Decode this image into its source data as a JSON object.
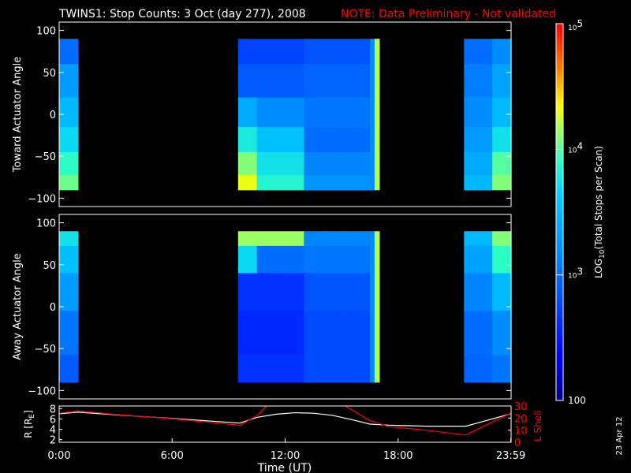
{
  "figure": {
    "title": "TWINS1: Stop Counts:  3 Oct (day 277), 2008",
    "note": "NOTE: Data Preliminary - Not validated",
    "date_stamp": "23 Apr 12",
    "xlabel": "Time (UT)",
    "colors": {
      "background": "#000000",
      "note": "#ff0000",
      "axis": "#ffffff",
      "r_line": "#ffffff",
      "l_line": "#ff0000"
    }
  },
  "chart_data": [
    {
      "type": "heatmap",
      "ylabel": "Toward Actuator Angle",
      "xlim": [
        0,
        24
      ],
      "ylim": [
        -110,
        110
      ],
      "yticks": [
        100,
        50,
        0,
        -50,
        -100
      ],
      "y_extent": [
        -90,
        90
      ],
      "scale": "log",
      "coverage": [
        [
          0.0,
          1.0
        ],
        [
          9.6,
          16.9
        ],
        [
          21.5,
          24.0
        ]
      ],
      "rows": [
        {
          "y": 80,
          "values": [
            [
              0.0,
              3.0
            ],
            [
              9.6,
              2.75
            ],
            [
              13.0,
              2.85
            ],
            [
              16.5,
              3.2
            ],
            [
              16.75,
              4.2
            ],
            [
              21.5,
              3.0
            ],
            [
              23.0,
              3.2
            ]
          ]
        },
        {
          "y": 40,
          "values": [
            [
              0.0,
              3.3
            ],
            [
              9.6,
              2.9
            ],
            [
              13.0,
              2.95
            ],
            [
              16.5,
              3.2
            ],
            [
              16.75,
              4.2
            ],
            [
              21.5,
              3.1
            ],
            [
              23.0,
              3.35
            ]
          ]
        },
        {
          "y": 0,
          "values": [
            [
              0.0,
              3.5
            ],
            [
              9.6,
              3.4
            ],
            [
              10.6,
              3.2
            ],
            [
              13.0,
              3.05
            ],
            [
              16.5,
              3.2
            ],
            [
              16.75,
              4.2
            ],
            [
              21.5,
              3.2
            ],
            [
              23.0,
              3.5
            ]
          ]
        },
        {
          "y": -30,
          "values": [
            [
              0.0,
              3.7
            ],
            [
              9.6,
              3.8
            ],
            [
              10.6,
              3.55
            ],
            [
              13.0,
              3.0
            ],
            [
              16.5,
              3.2
            ],
            [
              16.75,
              4.2
            ],
            [
              21.5,
              3.3
            ],
            [
              23.0,
              3.75
            ]
          ]
        },
        {
          "y": -60,
          "values": [
            [
              0.0,
              3.9
            ],
            [
              9.6,
              4.1
            ],
            [
              10.6,
              3.75
            ],
            [
              13.0,
              3.15
            ],
            [
              16.5,
              3.2
            ],
            [
              16.75,
              4.2
            ],
            [
              21.5,
              3.4
            ],
            [
              23.0,
              4.0
            ]
          ]
        },
        {
          "y": -85,
          "values": [
            [
              0.0,
              4.05
            ],
            [
              9.6,
              4.3
            ],
            [
              10.6,
              3.85
            ],
            [
              13.0,
              3.25
            ],
            [
              16.5,
              3.2
            ],
            [
              16.75,
              4.2
            ],
            [
              21.5,
              3.5
            ],
            [
              23.0,
              4.1
            ]
          ]
        }
      ]
    },
    {
      "type": "heatmap",
      "ylabel": "Away Actuator Angle",
      "xlim": [
        0,
        24
      ],
      "ylim": [
        -110,
        110
      ],
      "yticks": [
        100,
        50,
        0,
        -50,
        -100
      ],
      "y_extent": [
        -90,
        90
      ],
      "scale": "log",
      "coverage": [
        [
          0.0,
          1.0
        ],
        [
          9.6,
          16.9
        ],
        [
          21.5,
          24.0
        ]
      ],
      "rows": [
        {
          "y": 85,
          "values": [
            [
              0.0,
              3.75
            ],
            [
              9.6,
              4.15
            ],
            [
              13.0,
              3.15
            ],
            [
              16.5,
              3.2
            ],
            [
              16.75,
              4.2
            ],
            [
              21.5,
              3.5
            ],
            [
              23.0,
              4.1
            ]
          ]
        },
        {
          "y": 60,
          "values": [
            [
              0.0,
              3.55
            ],
            [
              9.6,
              3.7
            ],
            [
              10.5,
              3.0
            ],
            [
              13.0,
              3.05
            ],
            [
              16.5,
              3.2
            ],
            [
              16.75,
              4.2
            ],
            [
              21.5,
              3.35
            ],
            [
              23.0,
              3.9
            ]
          ]
        },
        {
          "y": 20,
          "values": [
            [
              0.0,
              3.3
            ],
            [
              9.6,
              2.65
            ],
            [
              13.0,
              2.85
            ],
            [
              16.5,
              3.2
            ],
            [
              16.75,
              4.2
            ],
            [
              21.5,
              3.15
            ],
            [
              23.0,
              3.5
            ]
          ]
        },
        {
          "y": -30,
          "values": [
            [
              0.0,
              3.05
            ],
            [
              9.6,
              2.6
            ],
            [
              13.0,
              2.8
            ],
            [
              16.5,
              3.2
            ],
            [
              16.75,
              4.2
            ],
            [
              21.5,
              3.0
            ],
            [
              23.0,
              3.2
            ]
          ]
        },
        {
          "y": -85,
          "values": [
            [
              0.0,
              2.9
            ],
            [
              9.6,
              2.65
            ],
            [
              13.0,
              2.8
            ],
            [
              16.5,
              3.2
            ],
            [
              16.75,
              4.2
            ],
            [
              21.5,
              2.95
            ],
            [
              23.0,
              3.05
            ]
          ]
        }
      ]
    },
    {
      "type": "line",
      "ylabel": "R [R",
      "ylabel_sub": "E",
      "ylabel_close": "]",
      "y2label": "L Shell",
      "xlim": [
        0,
        24
      ],
      "ylim": [
        1.5,
        8.5
      ],
      "y2lim": [
        0,
        30
      ],
      "yticks": [
        2,
        4,
        6,
        8
      ],
      "y2ticks": [
        0,
        10,
        20,
        30
      ],
      "xticks": [
        0,
        6,
        12,
        18,
        23.983
      ],
      "xticklabels": [
        "0:00",
        "6:00",
        "12:00",
        "18:00",
        "23:59"
      ],
      "series": [
        {
          "axis": "left",
          "color": "#ffffff",
          "x": [
            0,
            1,
            3,
            6,
            8,
            9.6,
            10.5,
            11.5,
            12.5,
            13.5,
            14.5,
            15.5,
            16.5,
            17.5,
            19.5,
            21.6,
            22.5,
            23.98
          ],
          "y": [
            7.0,
            7.3,
            6.8,
            6.1,
            5.6,
            5.2,
            6.3,
            6.9,
            7.2,
            7.1,
            6.7,
            5.9,
            5.0,
            4.8,
            4.6,
            4.6,
            5.5,
            7.0
          ]
        },
        {
          "axis": "right",
          "color": "#ff0000",
          "segments": [
            {
              "x": [
                0,
                1,
                3,
                6,
                8,
                9.6,
                10.5,
                11.0
              ],
              "y": [
                24,
                26,
                23,
                19.5,
                16.5,
                14,
                22,
                30
              ]
            },
            {
              "x": [
                15.2,
                16.5,
                17.5,
                19.5,
                21.6,
                22.5,
                23.98
              ],
              "y": [
                30,
                18,
                13,
                10,
                6,
                13,
                24
              ]
            }
          ]
        }
      ]
    },
    {
      "type": "colorbar",
      "label": "LOG",
      "label_sub": "10",
      "label_rest": "(Total Stops per Scan)",
      "range": [
        100,
        100000
      ],
      "ticks": [
        {
          "base": "10",
          "exp": "5",
          "value": 100000
        },
        {
          "base": "10",
          "exp": "4",
          "value": 10000
        },
        {
          "base": "10",
          "exp": "3",
          "value": 1000
        },
        {
          "plain": "100",
          "value": 100
        }
      ]
    }
  ]
}
